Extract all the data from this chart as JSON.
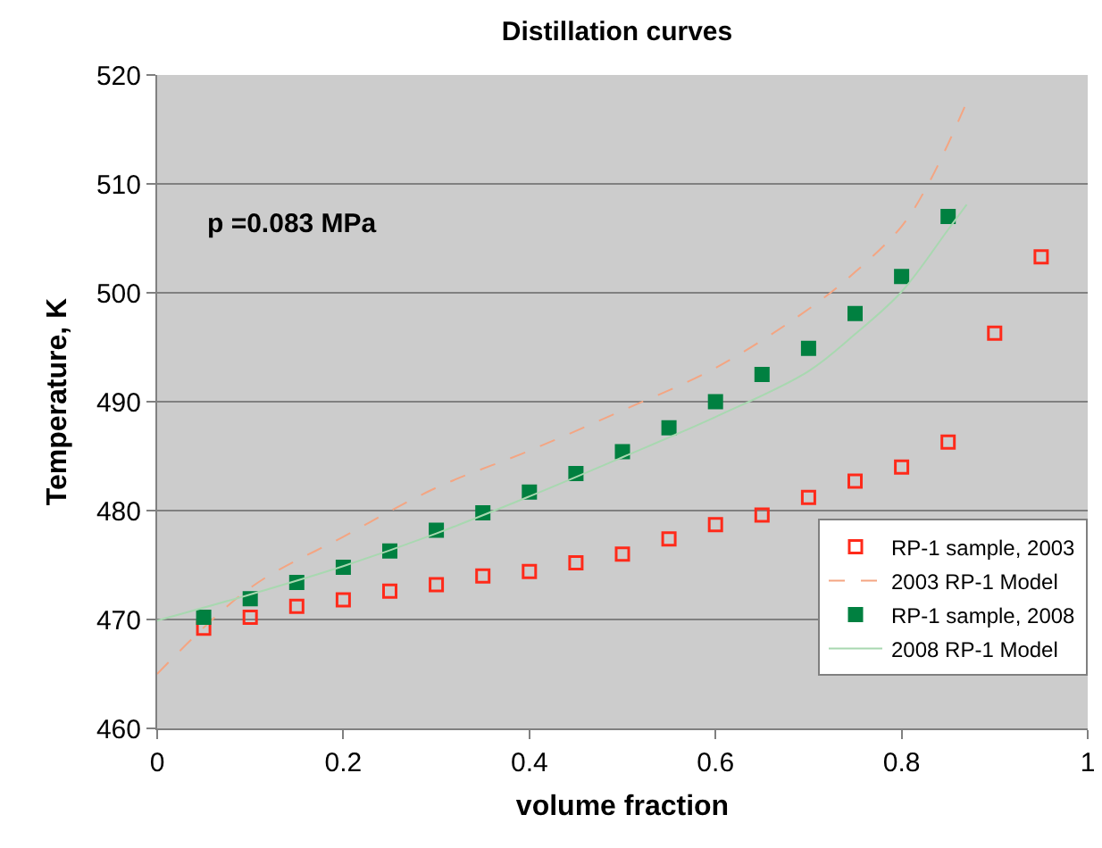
{
  "chart_data": {
    "type": "scatter",
    "title": "Distillation curves",
    "xlabel": "volume fraction",
    "ylabel": "Temperature, K",
    "annotations": [
      "p =0.083 MPa"
    ],
    "xlim": [
      0,
      1
    ],
    "xticks": [
      0,
      0.2,
      0.4,
      0.6,
      0.8,
      1
    ],
    "ylim": [
      460,
      520
    ],
    "yticks": [
      460,
      470,
      480,
      490,
      500,
      510,
      520
    ],
    "grid": "y",
    "legend": "bottom right",
    "series": [
      {
        "name": "RP-1 sample, 2003",
        "marker": "square",
        "color": "#ff2a1a",
        "x": [
          0.05,
          0.1,
          0.15,
          0.2,
          0.25,
          0.3,
          0.35,
          0.4,
          0.45,
          0.5,
          0.55,
          0.6,
          0.65,
          0.7,
          0.75,
          0.8,
          0.85,
          0.9,
          0.95
        ],
        "values": [
          469.2,
          470.2,
          471.2,
          471.8,
          472.6,
          473.2,
          474.0,
          474.4,
          475.2,
          476.0,
          477.4,
          478.7,
          479.6,
          481.2,
          482.7,
          484.0,
          486.3,
          496.3,
          503.3
        ]
      },
      {
        "name": "2003 RP-1 Model",
        "type": "line",
        "line_style": "dashed",
        "color": "#f4a582",
        "x": [
          0,
          0.1,
          0.2,
          0.3,
          0.4,
          0.5,
          0.6,
          0.7,
          0.75,
          0.8,
          0.83,
          0.87
        ],
        "values": [
          465.0,
          472.9,
          477.6,
          482.1,
          485.5,
          489.2,
          493.1,
          498.5,
          501.9,
          506.1,
          510.2,
          517.5
        ]
      },
      {
        "name": "RP-1 sample, 2008",
        "type": "scatter",
        "marker": "square",
        "color": "#008040",
        "x": [
          0.05,
          0.1,
          0.15,
          0.2,
          0.25,
          0.3,
          0.35,
          0.4,
          0.45,
          0.5,
          0.55,
          0.6,
          0.65,
          0.7,
          0.75,
          0.8,
          0.85
        ],
        "values": [
          470.2,
          471.9,
          473.4,
          474.8,
          476.3,
          478.2,
          479.8,
          481.7,
          483.4,
          485.4,
          487.6,
          490.0,
          492.5,
          494.9,
          498.1,
          501.5,
          507.0
        ]
      },
      {
        "name": "2008 RP-1 Model",
        "type": "line",
        "line_style": "solid",
        "color": "#a8d8b0",
        "x": [
          0,
          0.1,
          0.2,
          0.3,
          0.4,
          0.5,
          0.6,
          0.7,
          0.75,
          0.8,
          0.85,
          0.87
        ],
        "values": [
          469.9,
          472.3,
          474.9,
          477.9,
          481.3,
          484.9,
          488.6,
          492.8,
          496.2,
          500.1,
          505.8,
          508.1
        ]
      }
    ]
  }
}
